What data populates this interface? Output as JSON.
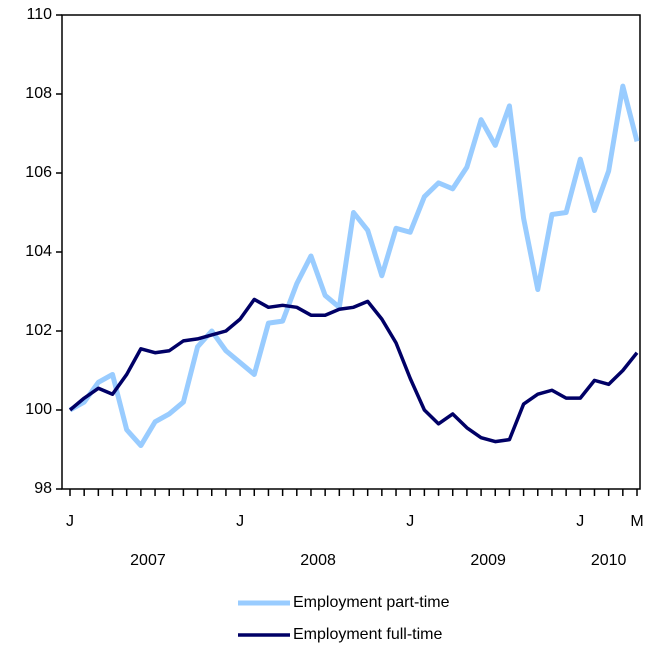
{
  "chart_data": {
    "type": "line",
    "categories": [
      "J",
      null,
      null,
      null,
      null,
      null,
      null,
      null,
      null,
      null,
      null,
      null,
      "J",
      null,
      null,
      null,
      null,
      null,
      null,
      null,
      null,
      null,
      null,
      null,
      "J",
      null,
      null,
      null,
      null,
      null,
      null,
      null,
      null,
      null,
      null,
      null,
      "J",
      null,
      null,
      null,
      "M"
    ],
    "x_groups": [
      {
        "label": "2007",
        "count": 12
      },
      {
        "label": "2008",
        "count": 12
      },
      {
        "label": "2009",
        "count": 12
      },
      {
        "label": "2010",
        "count": 5
      }
    ],
    "series": [
      {
        "name": "Employment part-time",
        "color": "#99ccff",
        "values": [
          100.0,
          100.2,
          100.7,
          100.9,
          99.5,
          99.1,
          99.7,
          99.9,
          100.2,
          101.6,
          102.0,
          101.5,
          101.2,
          100.9,
          102.2,
          102.25,
          103.2,
          103.9,
          102.9,
          102.6,
          105.0,
          104.55,
          103.4,
          104.6,
          104.5,
          105.4,
          105.75,
          105.6,
          106.15,
          107.35,
          106.7,
          107.7,
          104.85,
          103.05,
          104.95,
          105.0,
          106.35,
          105.05,
          106.05,
          108.2,
          106.8
        ]
      },
      {
        "name": "Employment full-time",
        "color": "#000066",
        "values": [
          100.0,
          100.3,
          100.55,
          100.4,
          100.9,
          101.55,
          101.45,
          101.5,
          101.75,
          101.8,
          101.9,
          102.0,
          102.3,
          102.8,
          102.6,
          102.65,
          102.6,
          102.4,
          102.4,
          102.55,
          102.6,
          102.75,
          102.3,
          101.7,
          100.8,
          100.0,
          99.65,
          99.9,
          99.55,
          99.3,
          99.2,
          99.25,
          100.15,
          100.4,
          100.5,
          100.3,
          100.3,
          100.75,
          100.65,
          101.0,
          101.45
        ]
      }
    ],
    "ylim": [
      98,
      110
    ],
    "yticks": [
      98,
      100,
      102,
      104,
      106,
      108,
      110
    ]
  }
}
